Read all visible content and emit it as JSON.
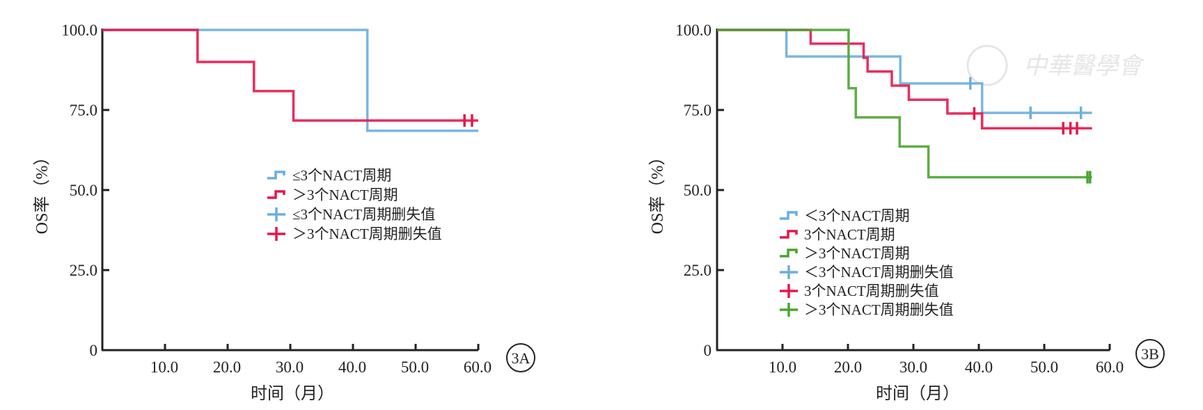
{
  "watermark": {
    "text": "中華醫學會"
  },
  "chart_data": [
    {
      "panel_label": "3A",
      "type": "line",
      "subtype": "kaplan-meier step",
      "xlabel": "时间（月）",
      "ylabel": "OS率（%）",
      "xlim": [
        0,
        60
      ],
      "ylim": [
        0,
        100
      ],
      "xticks": [
        "10.0",
        "20.0",
        "30.0",
        "40.0",
        "50.0",
        "60.0"
      ],
      "yticks": [
        "0",
        "25.0",
        "50.0",
        "75.0",
        "100.0"
      ],
      "grid": false,
      "legend_position": "center",
      "legend": [
        "≤3个NACT周期",
        "＞3个NACT周期",
        "≤3个NACT周期删失值",
        "＞3个NACT周期删失值"
      ],
      "series": [
        {
          "name": "≤3个NACT周期",
          "color": "#6aaee0",
          "steps": [
            [
              0,
              100
            ],
            [
              42.3,
              68.5
            ]
          ],
          "end": 60,
          "censored": []
        },
        {
          "name": "＞3个NACT周期",
          "color": "#e8154a",
          "steps": [
            [
              0,
              100
            ],
            [
              15.2,
              90.0
            ],
            [
              24.2,
              80.9
            ],
            [
              30.5,
              71.7
            ]
          ],
          "end": 60,
          "censored": [
            57.8,
            59.0
          ]
        }
      ]
    },
    {
      "panel_label": "3B",
      "type": "line",
      "subtype": "kaplan-meier step",
      "xlabel": "时间（月）",
      "ylabel": "OS率（%）",
      "xlim": [
        0,
        60
      ],
      "ylim": [
        0,
        100
      ],
      "xticks": [
        "10.0",
        "20.0",
        "30.0",
        "40.0",
        "50.0",
        "60.0"
      ],
      "yticks": [
        "0",
        "25.0",
        "50.0",
        "75.0",
        "100.0"
      ],
      "grid": false,
      "legend_position": "center-left",
      "legend": [
        "＜3个NACT周期",
        "3个NACT周期",
        "＞3个NACT周期",
        "＜3个NACT周期删失值",
        "3个NACT周期删失值",
        "＞3个NACT周期删失值"
      ],
      "series": [
        {
          "name": "＜3个NACT周期",
          "color": "#6aaee0",
          "steps": [
            [
              0,
              100
            ],
            [
              10.6,
              91.7
            ],
            [
              28.0,
              83.3
            ],
            [
              40.5,
              74.1
            ]
          ],
          "end": 57.3,
          "censored": [
            38.7,
            47.9,
            55.6
          ]
        },
        {
          "name": "3个NACT周期",
          "color": "#e8154a",
          "steps": [
            [
              0,
              100
            ],
            [
              14.3,
              95.7
            ],
            [
              22.4,
              91.3
            ],
            [
              23.0,
              87.0
            ],
            [
              26.7,
              82.6
            ],
            [
              29.3,
              78.2
            ],
            [
              35.2,
              73.9
            ],
            [
              40.5,
              69.3
            ]
          ],
          "end": 57.3,
          "censored": [
            39.3,
            52.9,
            54.0,
            55.0
          ]
        },
        {
          "name": "＞3个NACT周期",
          "color": "#4aa52e",
          "steps": [
            [
              0,
              100
            ],
            [
              20.1,
              81.8
            ],
            [
              21.2,
              72.7
            ],
            [
              27.9,
              63.6
            ],
            [
              32.3,
              54.0
            ]
          ],
          "end": 57.3,
          "censored": [
            56.6,
            57.0
          ]
        }
      ]
    }
  ]
}
